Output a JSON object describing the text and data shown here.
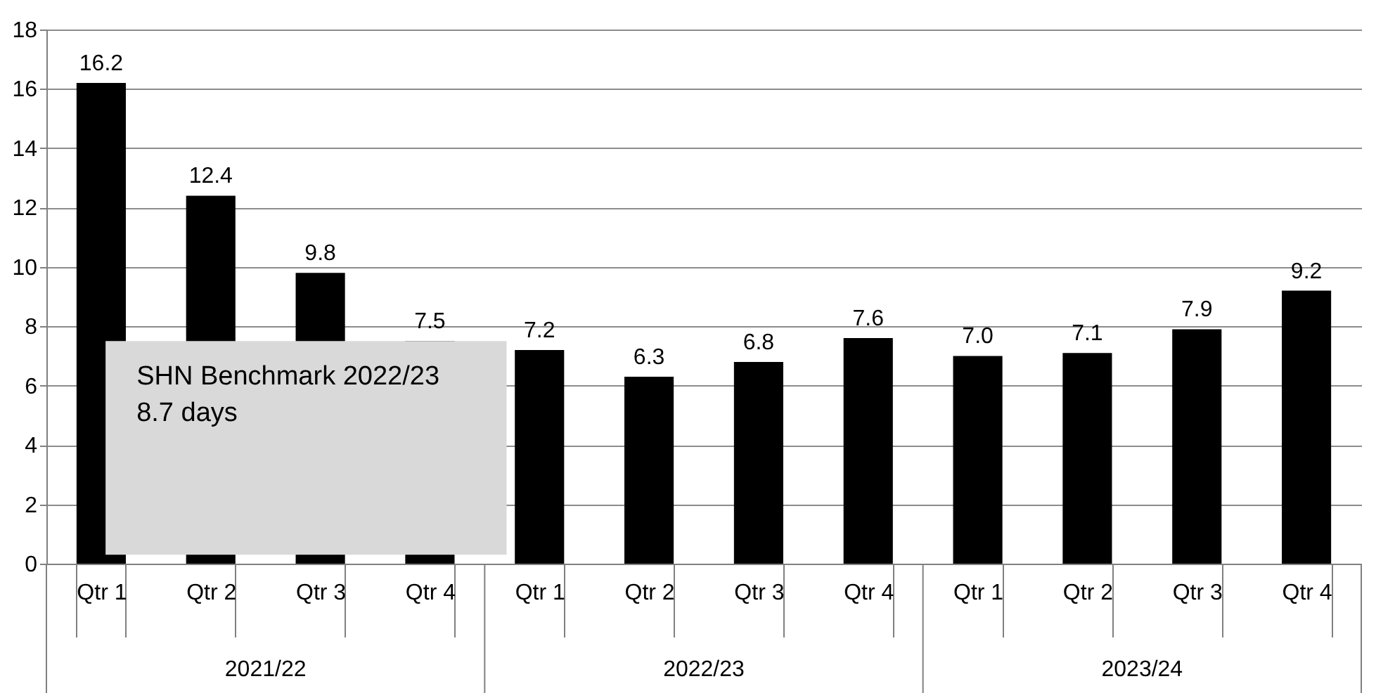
{
  "chart_data": {
    "type": "bar",
    "categories": [
      "Qtr 1",
      "Qtr 2",
      "Qtr 3",
      "Qtr 4",
      "Qtr 1",
      "Qtr 2",
      "Qtr 3",
      "Qtr 4",
      "Qtr 1",
      "Qtr 2",
      "Qtr 3",
      "Qtr 4"
    ],
    "values": [
      16.2,
      12.4,
      9.8,
      7.5,
      7.2,
      6.3,
      6.8,
      7.6,
      7.0,
      7.1,
      7.9,
      9.2
    ],
    "color": "#000000",
    "ylim": [
      0,
      18
    ],
    "yticks": [
      0,
      2,
      4,
      6,
      8,
      10,
      12,
      14,
      16,
      18
    ],
    "grid": "y",
    "value_labels": [
      "16.2",
      "12.4",
      "9.8",
      "7.5",
      "7.2",
      "6.3",
      "6.8",
      "7.6",
      "7.0",
      "7.1",
      "7.9",
      "9.2"
    ],
    "annotations": [
      "SHN Benchmark 2022/23\n8.7 days",
      "2021/22",
      "2022/23",
      "2023/24"
    ]
  }
}
